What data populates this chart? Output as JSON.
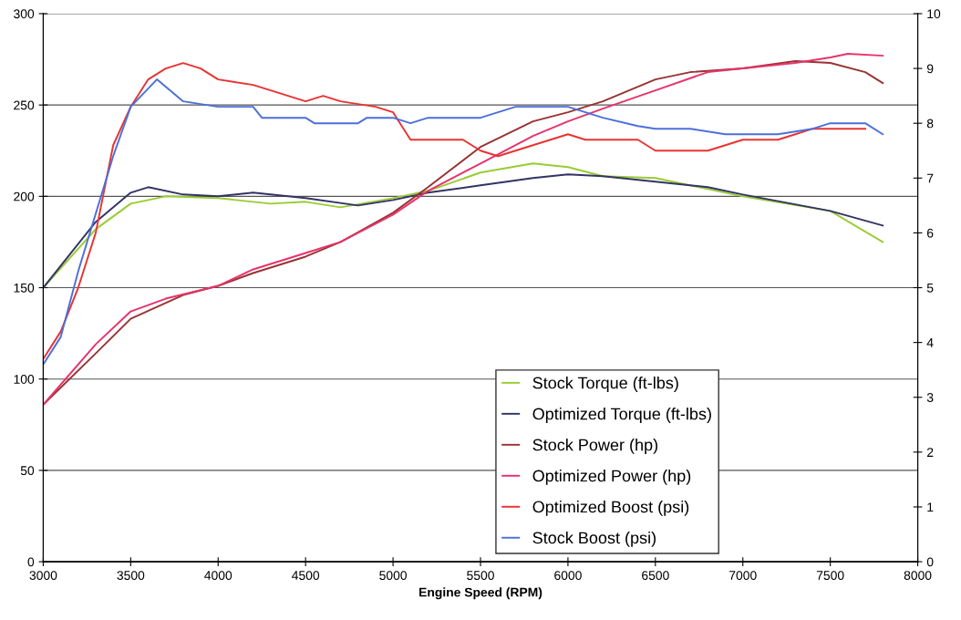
{
  "chart_data": {
    "type": "line",
    "xlabel": "Engine Speed (RPM)",
    "xlim": [
      3000,
      8000
    ],
    "xticks": [
      3000,
      3500,
      4000,
      4500,
      5000,
      5500,
      6000,
      6500,
      7000,
      7500,
      8000
    ],
    "ylim": [
      0,
      300
    ],
    "yticks": [
      0,
      50,
      100,
      150,
      200,
      250,
      300
    ],
    "y2lim": [
      0,
      10
    ],
    "y2ticks": [
      0,
      1,
      2,
      3,
      4,
      5,
      6,
      7,
      8,
      9,
      10
    ],
    "grid": "y",
    "legend": "bottom",
    "marker": "none",
    "line_style": "solid",
    "series": [
      {
        "name": "Stock Torque (ft-lbs)",
        "color": "#99cc33",
        "x": [
          3000,
          3300,
          3500,
          3700,
          4000,
          4300,
          4500,
          4700,
          5000,
          5200,
          5500,
          5800,
          6000,
          6200,
          6500,
          6800,
          7000,
          7500,
          7800
        ],
        "values": [
          150,
          182,
          196,
          200,
          199,
          196,
          197,
          194,
          199,
          203,
          213,
          218,
          216,
          211,
          210,
          204,
          200,
          192,
          175
        ]
      },
      {
        "name": "Optimized Torque (ft-lbs)",
        "color": "#333366",
        "x": [
          3000,
          3300,
          3500,
          3600,
          3800,
          4000,
          4200,
          4500,
          4800,
          5000,
          5200,
          5500,
          5800,
          6000,
          6200,
          6500,
          6800,
          7000,
          7500,
          7800
        ],
        "values": [
          150,
          186,
          202,
          205,
          201,
          200,
          202,
          199,
          195,
          198,
          202,
          206,
          210,
          212,
          211,
          208,
          205,
          201,
          192,
          184
        ]
      },
      {
        "name": "Stock Power (hp)",
        "color": "#993333",
        "x": [
          3000,
          3300,
          3500,
          3800,
          4000,
          4200,
          4500,
          4700,
          5000,
          5200,
          5500,
          5800,
          6000,
          6200,
          6500,
          6700,
          7000,
          7300,
          7500,
          7700,
          7800
        ],
        "values": [
          86,
          114,
          133,
          146,
          151,
          158,
          167,
          175,
          191,
          205,
          227,
          241,
          246,
          252,
          264,
          268,
          270,
          274,
          273,
          268,
          262
        ]
      },
      {
        "name": "Optimized Power (hp)",
        "color": "#e6336b",
        "x": [
          3000,
          3300,
          3500,
          3700,
          4000,
          4200,
          4500,
          4700,
          5000,
          5200,
          5500,
          5800,
          6000,
          6200,
          6500,
          6800,
          7000,
          7300,
          7500,
          7600,
          7800
        ],
        "values": [
          86,
          119,
          137,
          144,
          151,
          160,
          169,
          175,
          190,
          203,
          218,
          233,
          241,
          248,
          258,
          268,
          270,
          273,
          276,
          278,
          277
        ]
      },
      {
        "name": "Optimized Boost (psi)",
        "color": "#e83333",
        "axis": "y2",
        "x": [
          3000,
          3100,
          3200,
          3300,
          3400,
          3500,
          3600,
          3700,
          3800,
          3900,
          4000,
          4200,
          4300,
          4500,
          4600,
          4700,
          4900,
          5000,
          5100,
          5200,
          5400,
          5500,
          5600,
          5800,
          6000,
          6100,
          6300,
          6400,
          6500,
          6800,
          7000,
          7200,
          7300,
          7400,
          7500,
          7700
        ],
        "values": [
          3.7,
          4.2,
          5.0,
          6.0,
          7.6,
          8.3,
          8.8,
          9.0,
          9.1,
          9.0,
          8.8,
          8.7,
          8.6,
          8.4,
          8.5,
          8.4,
          8.3,
          8.2,
          7.7,
          7.7,
          7.7,
          7.5,
          7.4,
          7.6,
          7.8,
          7.7,
          7.7,
          7.7,
          7.5,
          7.5,
          7.7,
          7.7,
          7.8,
          7.9,
          7.9,
          7.9
        ]
      },
      {
        "name": "Stock Boost (psi)",
        "color": "#4d6fd9",
        "axis": "y2",
        "x": [
          3000,
          3100,
          3200,
          3400,
          3500,
          3650,
          3800,
          4000,
          4200,
          4250,
          4500,
          4550,
          4800,
          4850,
          5000,
          5100,
          5200,
          5500,
          5700,
          6000,
          6200,
          6400,
          6500,
          6700,
          6900,
          7200,
          7400,
          7500,
          7600,
          7700,
          7800
        ],
        "values": [
          3.6,
          4.1,
          5.3,
          7.4,
          8.3,
          8.8,
          8.4,
          8.3,
          8.3,
          8.1,
          8.1,
          8.0,
          8.0,
          8.1,
          8.1,
          8.0,
          8.1,
          8.1,
          8.3,
          8.3,
          8.1,
          7.95,
          7.9,
          7.9,
          7.8,
          7.8,
          7.9,
          8.0,
          8.0,
          8.0,
          7.8
        ]
      }
    ]
  }
}
